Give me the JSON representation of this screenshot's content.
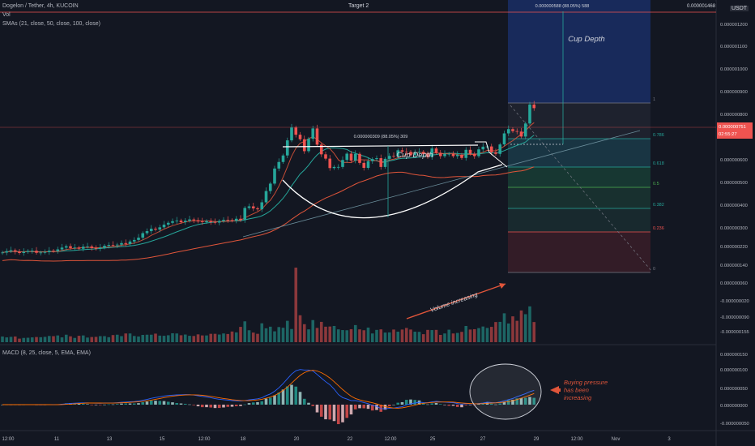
{
  "chart_data": {
    "type": "candlestick",
    "symbol_title": "Dogelon / Tether, 4h, KUCOIN",
    "currency": "USDT",
    "indicator_labels": {
      "volume": "Vol",
      "sma": "SMAs (21, close, 50, close, 100, close)",
      "macd": "MACD (8, 25, close, 5, EMA, EMA)"
    },
    "price_axis_ticks": [
      "0.000001200",
      "0.000001100",
      "0.000001000",
      "0.000000900",
      "0.000000800",
      "0.000000700",
      "0.000000600",
      "0.000000500",
      "0.000000400",
      "0.000000300",
      "0.000000220",
      "0.000000140",
      "0.000000060",
      "-0.000000020",
      "-0.000000090",
      "-0.000000155"
    ],
    "macd_axis_ticks": [
      "0.000000150",
      "0.000000100",
      "0.000000050",
      "0.000000000",
      "-0.000000050"
    ],
    "x_ticks": [
      "12:00",
      "11",
      "13",
      "15",
      "12:00",
      "18",
      "20",
      "22",
      "12:00",
      "25",
      "27",
      "29",
      "12:00",
      "Nov",
      "3"
    ],
    "last_price": "0.000000751",
    "countdown": "02:55:27",
    "target_line_value": "0.000001468",
    "target_label": "Target 2",
    "fib_levels": [
      {
        "level": "1",
        "color": "#787b86"
      },
      {
        "level": "0.786",
        "color": "#26a69a"
      },
      {
        "level": "0.618",
        "color": "#26a69a"
      },
      {
        "level": "0.5",
        "color": "#4caf50"
      },
      {
        "level": "0.382",
        "color": "#26a69a"
      },
      {
        "level": "0.236",
        "color": "#ef5350"
      },
      {
        "level": "0",
        "color": "#787b86"
      }
    ],
    "measure_top": "0.000000588 (88.05%) 588",
    "measure_cup": "0.000000309 (88.05%) 309",
    "cup_label": "Cup Depth",
    "cup_label_2": "Cup Depth",
    "volume_label": "Volume increasing",
    "buying_pressure_label": [
      "Buying pressure",
      "has been",
      "increasing"
    ],
    "candles_open": [
      0.108,
      0.11,
      0.116,
      0.12,
      0.114,
      0.108,
      0.113,
      0.117,
      0.118,
      0.109,
      0.11,
      0.112,
      0.118,
      0.117,
      0.124,
      0.132,
      0.138,
      0.13,
      0.132,
      0.127,
      0.136,
      0.137,
      0.13,
      0.127,
      0.132,
      0.14,
      0.144,
      0.142,
      0.145,
      0.152,
      0.148,
      0.159,
      0.166,
      0.176,
      0.196,
      0.205,
      0.216,
      0.212,
      0.222,
      0.234,
      0.242,
      0.249,
      0.252,
      0.245,
      0.251,
      0.257,
      0.253,
      0.248,
      0.245,
      0.25,
      0.245,
      0.243,
      0.25,
      0.255,
      0.254,
      0.252,
      0.26,
      0.254,
      0.308,
      0.315,
      0.306,
      0.302,
      0.333,
      0.383,
      0.416,
      0.483,
      0.512,
      0.541,
      0.608,
      0.665,
      0.633,
      0.613,
      0.56,
      0.615,
      0.661,
      0.589,
      0.546,
      0.527,
      0.485,
      0.49,
      0.49,
      0.521,
      0.549,
      0.518,
      0.548,
      0.508,
      0.486,
      0.516,
      0.525,
      0.529,
      0.49,
      0.526,
      0.539,
      0.537,
      0.564,
      0.558,
      0.557,
      0.542,
      0.555,
      0.557,
      0.547,
      0.534,
      0.572,
      0.553,
      0.538,
      0.548,
      0.548,
      0.538,
      0.544,
      0.53,
      0.566,
      0.549,
      0.538,
      0.568,
      0.58,
      0.581,
      0.555,
      0.548,
      0.59,
      0.639,
      0.658,
      0.649,
      0.647,
      0.625,
      0.683,
      0.767
    ],
    "candles_close": [
      0.11,
      0.116,
      0.12,
      0.114,
      0.108,
      0.113,
      0.117,
      0.118,
      0.109,
      0.11,
      0.112,
      0.118,
      0.117,
      0.124,
      0.132,
      0.138,
      0.13,
      0.132,
      0.127,
      0.136,
      0.137,
      0.13,
      0.127,
      0.132,
      0.14,
      0.144,
      0.142,
      0.145,
      0.152,
      0.148,
      0.159,
      0.166,
      0.176,
      0.196,
      0.205,
      0.216,
      0.212,
      0.222,
      0.234,
      0.242,
      0.249,
      0.252,
      0.245,
      0.251,
      0.257,
      0.253,
      0.248,
      0.245,
      0.25,
      0.245,
      0.243,
      0.25,
      0.255,
      0.254,
      0.252,
      0.26,
      0.254,
      0.308,
      0.315,
      0.306,
      0.302,
      0.333,
      0.383,
      0.416,
      0.483,
      0.512,
      0.541,
      0.608,
      0.665,
      0.633,
      0.613,
      0.56,
      0.615,
      0.661,
      0.589,
      0.546,
      0.527,
      0.485,
      0.49,
      0.49,
      0.521,
      0.549,
      0.518,
      0.548,
      0.508,
      0.486,
      0.516,
      0.525,
      0.529,
      0.49,
      0.526,
      0.539,
      0.537,
      0.564,
      0.558,
      0.557,
      0.542,
      0.555,
      0.557,
      0.547,
      0.534,
      0.572,
      0.553,
      0.538,
      0.548,
      0.548,
      0.538,
      0.544,
      0.53,
      0.566,
      0.549,
      0.538,
      0.568,
      0.58,
      0.581,
      0.555,
      0.548,
      0.59,
      0.639,
      0.658,
      0.649,
      0.647,
      0.625,
      0.683,
      0.767,
      0.751
    ],
    "volumes": [
      0.32,
      0.27,
      0.3,
      0.32,
      0.2,
      0.24,
      0.25,
      0.27,
      0.29,
      0.28,
      0.3,
      0.35,
      0.34,
      0.38,
      0.27,
      0.42,
      0.33,
      0.24,
      0.36,
      0.38,
      0.26,
      0.29,
      0.3,
      0.34,
      0.34,
      0.28,
      0.4,
      0.42,
      0.34,
      0.49,
      0.49,
      0.35,
      0.32,
      0.41,
      0.42,
      0.42,
      0.48,
      0.37,
      0.36,
      0.39,
      0.5,
      0.49,
      0.39,
      0.43,
      0.36,
      0.35,
      0.44,
      0.38,
      0.38,
      0.47,
      0.47,
      0.43,
      0.49,
      0.46,
      0.6,
      0.55,
      0.86,
      1.17,
      0.67,
      0.54,
      0.47,
      1.06,
      0.78,
      0.87,
      0.61,
      0.85,
      0.81,
      1.2,
      0.74,
      4.18,
      1.51,
      1.01,
      0.72,
      1.24,
      0.8,
      1.14,
      0.87,
      0.88,
      0.91,
      0.72,
      0.68,
      0.67,
      0.73,
      0.96,
      0.72,
      0.67,
      0.82,
      0.49,
      0.69,
      0.72,
      0.54,
      0.55,
      0.71,
      0.59,
      0.71,
      0.8,
      0.71,
      0.59,
      0.58,
      0.45,
      0.69,
      0.68,
      0.69,
      0.41,
      0.49,
      0.7,
      0.49,
      0.52,
      0.58,
      0.91,
      0.71,
      0.73,
      0.79,
      0.88,
      0.8,
      0.86,
      1.13,
      1.14,
      1.62,
      1.05,
      1.45,
      1.2,
      1.78,
      1.57,
      2.01,
      1.13
    ]
  }
}
